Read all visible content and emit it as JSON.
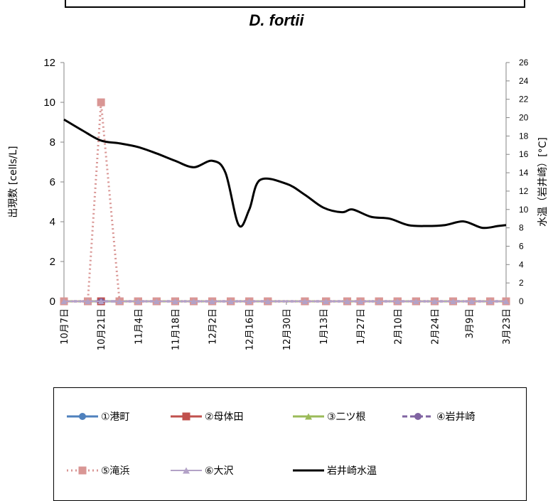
{
  "chart_data": {
    "type": "line",
    "title": "D. fortii",
    "ylabel": "出現数 [cells/L]",
    "y2label": "水温（岩井崎）[°C]",
    "ylim": [
      0,
      12
    ],
    "y2lim": [
      0,
      26
    ],
    "yticks": [
      "0",
      "2",
      "4",
      "6",
      "8",
      "10",
      "12"
    ],
    "y2ticks": [
      "0",
      "2",
      "4",
      "6",
      "8",
      "10",
      "12",
      "14",
      "16",
      "18",
      "20",
      "22",
      "24",
      "26"
    ],
    "xlim": [
      "2013-10-07",
      "2014-03-23"
    ],
    "xtick_labels": [
      "10月7日",
      "10月21日",
      "11月4日",
      "11月18日",
      "12月2日",
      "12月16日",
      "12月30日",
      "1月13日",
      "1月27日",
      "2月10日",
      "2月24日",
      "3月9日",
      "3月23日"
    ],
    "xtick_dates": [
      "2013-10-07",
      "2013-10-21",
      "2013-11-04",
      "2013-11-18",
      "2013-12-02",
      "2013-12-16",
      "2013-12-30",
      "2014-01-13",
      "2014-01-27",
      "2014-02-10",
      "2014-02-24",
      "2014-03-09",
      "2014-03-23"
    ],
    "legend_position": "bottom",
    "sample_dates": [
      "2013-10-07",
      "2013-10-16",
      "2013-10-21",
      "2013-10-28",
      "2013-11-04",
      "2013-11-11",
      "2013-11-18",
      "2013-11-25",
      "2013-12-02",
      "2013-12-09",
      "2013-12-16",
      "2013-12-23",
      "2014-01-06",
      "2014-01-14",
      "2014-01-22",
      "2014-01-27",
      "2014-02-03",
      "2014-02-10",
      "2014-02-17",
      "2014-02-24",
      "2014-03-03",
      "2014-03-10",
      "2014-03-17",
      "2014-03-23"
    ],
    "series": [
      {
        "name": "①港町",
        "color": "#4f81bd",
        "marker": "circle",
        "dash": "solid",
        "axis": "left",
        "values": [
          0,
          0,
          0,
          0,
          0,
          0,
          0,
          0,
          0,
          0,
          0,
          0,
          0,
          0,
          0,
          0,
          0,
          0,
          0,
          0,
          0,
          0,
          0,
          0
        ]
      },
      {
        "name": "②母体田",
        "color": "#c0504d",
        "marker": "square",
        "dash": "solid",
        "axis": "left",
        "values": [
          0,
          0,
          0,
          0,
          0,
          0,
          0,
          0,
          0,
          0,
          0,
          0,
          0,
          0,
          0,
          0,
          0,
          0,
          0,
          0,
          0,
          0,
          0,
          0
        ]
      },
      {
        "name": "③二ツ根",
        "color": "#9bbb59",
        "marker": "triangle",
        "dash": "solid",
        "axis": "left",
        "values": [
          0,
          0,
          0,
          0,
          0,
          0,
          0,
          0,
          0,
          0,
          0,
          0,
          0,
          0,
          0,
          0,
          0,
          0,
          0,
          0,
          0,
          0,
          0,
          0
        ]
      },
      {
        "name": "④岩井崎",
        "color": "#8064a2",
        "marker": "circle",
        "dash": "dash",
        "axis": "left",
        "values": [
          0,
          0,
          0,
          0,
          0,
          0,
          0,
          0,
          0,
          0,
          0,
          0,
          0,
          0,
          0,
          0,
          0,
          0,
          0,
          0,
          0,
          0,
          0,
          0
        ]
      },
      {
        "name": "⑤滝浜",
        "color": "#d99694",
        "marker": "square",
        "dash": "dot",
        "axis": "left",
        "values": [
          0,
          0,
          10,
          0,
          0,
          0,
          0,
          0,
          0,
          0,
          0,
          0,
          0,
          0,
          0,
          0,
          0,
          0,
          0,
          0,
          0,
          0,
          0,
          0
        ]
      },
      {
        "name": "⑥大沢",
        "color": "#b3a2c7",
        "marker": "triangle",
        "dash": "hollow",
        "axis": "left",
        "values": [
          0,
          0,
          0,
          0,
          0,
          0,
          0,
          0,
          0,
          0,
          0,
          0,
          0,
          0,
          0,
          0,
          0,
          0,
          0,
          0,
          0,
          0,
          0,
          0
        ]
      },
      {
        "name": "岩井崎水温",
        "color": "#000000",
        "marker": "none",
        "dash": "solid",
        "axis": "right",
        "x": [
          "2013-10-07",
          "2013-10-14",
          "2013-10-21",
          "2013-10-28",
          "2013-11-04",
          "2013-11-11",
          "2013-11-18",
          "2013-11-25",
          "2013-12-02",
          "2013-12-07",
          "2013-12-12",
          "2013-12-16",
          "2013-12-20",
          "2013-12-30",
          "2014-01-06",
          "2014-01-13",
          "2014-01-20",
          "2014-01-24",
          "2014-01-31",
          "2014-02-07",
          "2014-02-14",
          "2014-02-21",
          "2014-02-28",
          "2014-03-07",
          "2014-03-14",
          "2014-03-20",
          "2014-03-23"
        ],
        "values": [
          19.8,
          18.6,
          17.5,
          17.2,
          16.8,
          16.1,
          15.3,
          14.6,
          15.3,
          14.0,
          8.3,
          10.0,
          13.2,
          12.8,
          11.6,
          10.2,
          9.7,
          10.0,
          9.2,
          9.0,
          8.3,
          8.2,
          8.3,
          8.7,
          8.0,
          8.2,
          8.3
        ]
      }
    ]
  }
}
